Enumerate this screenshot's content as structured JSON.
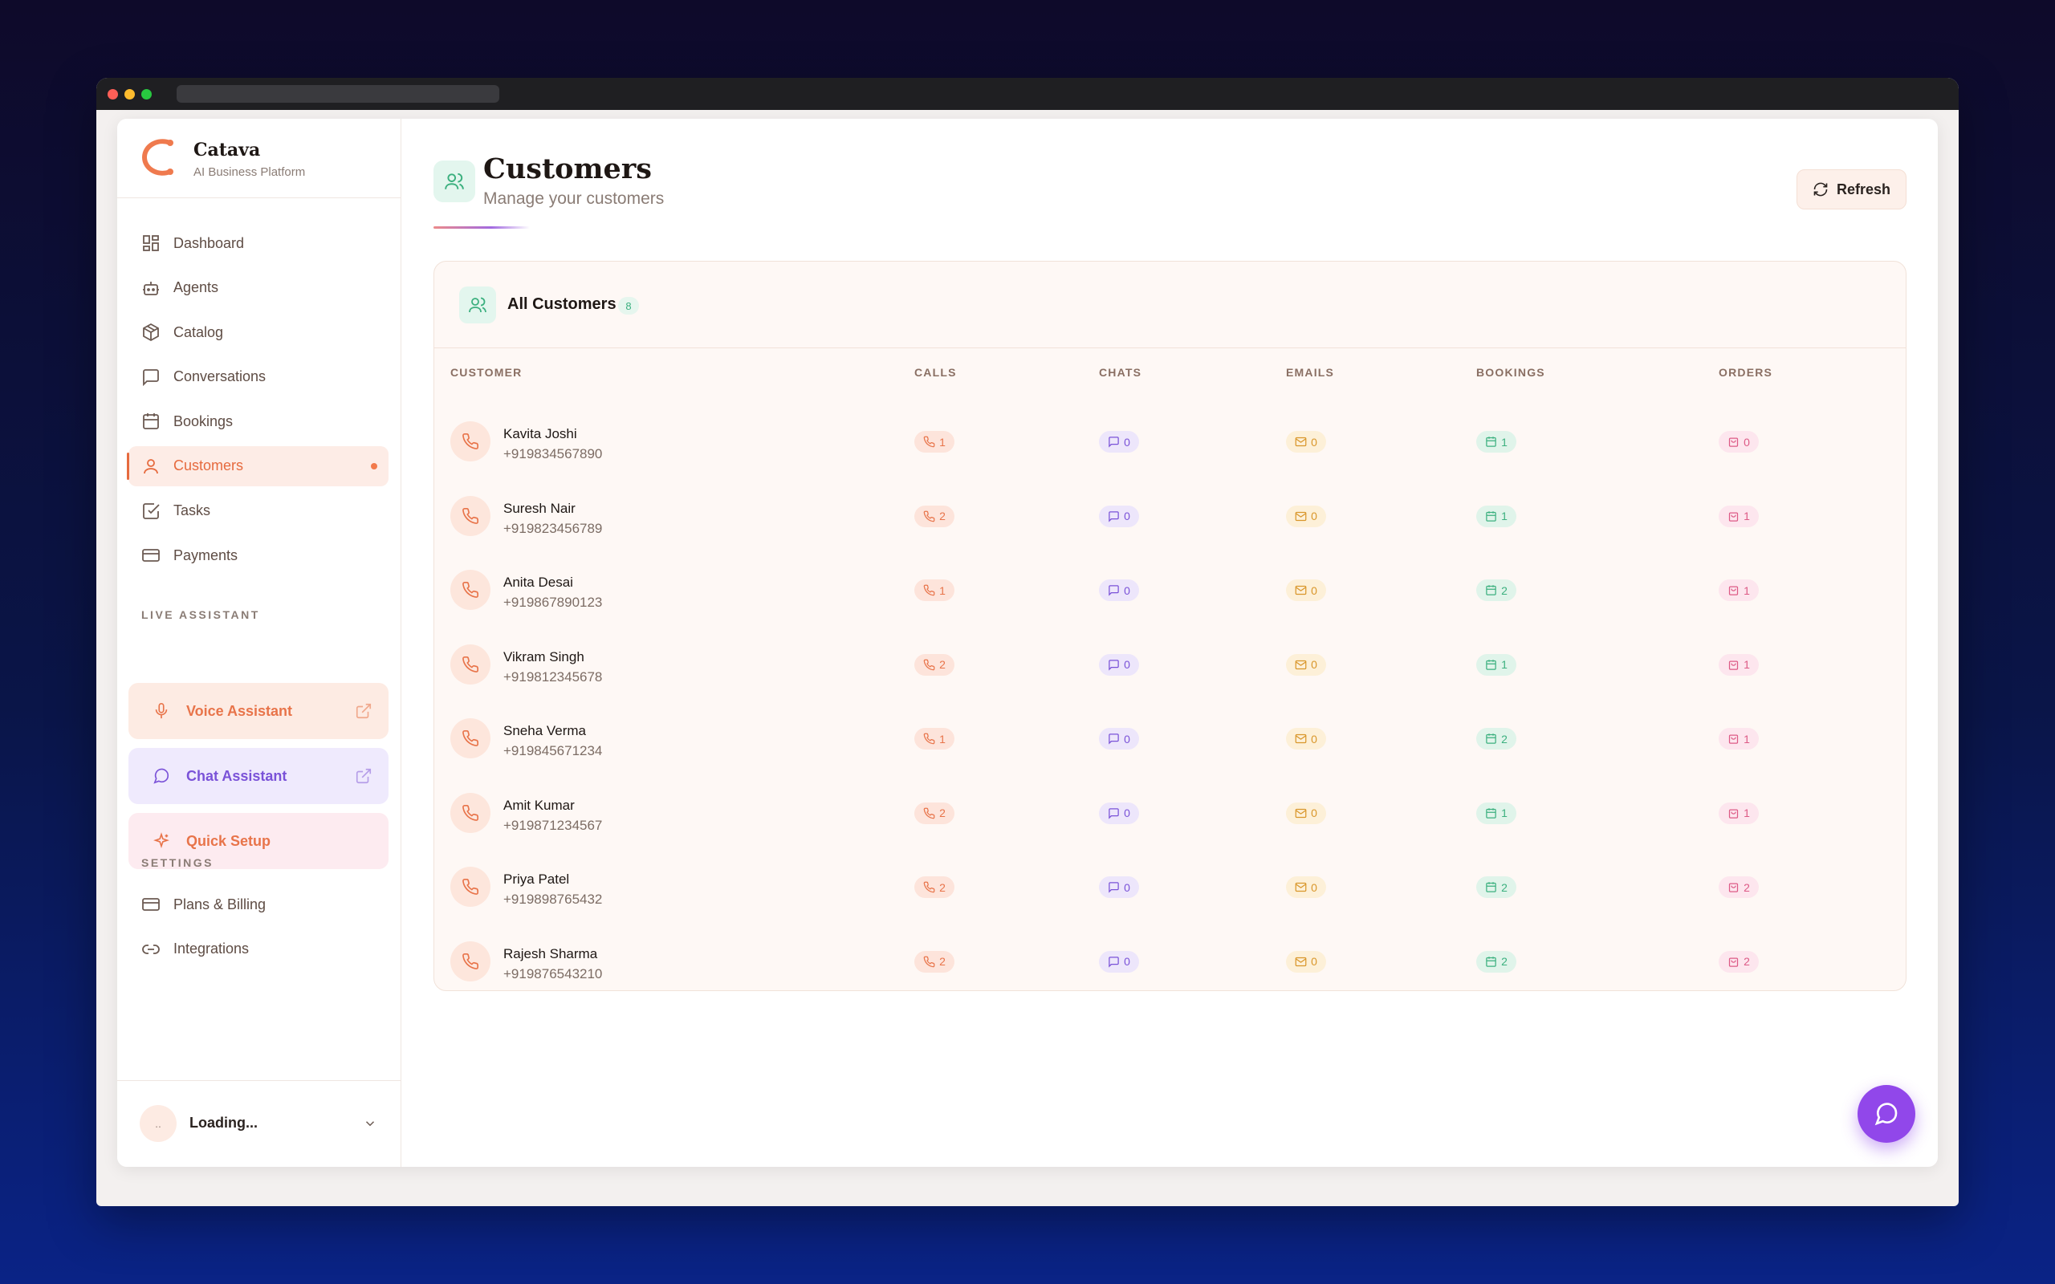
{
  "brand": {
    "name": "Catava",
    "subtitle": "AI Business Platform"
  },
  "sidebar": {
    "items": [
      {
        "label": "Dashboard",
        "icon": "dashboard-icon"
      },
      {
        "label": "Agents",
        "icon": "robot-icon"
      },
      {
        "label": "Catalog",
        "icon": "package-icon"
      },
      {
        "label": "Conversations",
        "icon": "message-square-icon"
      },
      {
        "label": "Bookings",
        "icon": "calendar-icon"
      },
      {
        "label": "Customers",
        "icon": "user-icon",
        "active": true
      },
      {
        "label": "Tasks",
        "icon": "check-square-icon"
      },
      {
        "label": "Payments",
        "icon": "credit-card-icon"
      }
    ],
    "live_assistant_label": "LIVE ASSISTANT",
    "assistants": {
      "voice": "Voice Assistant",
      "chat": "Chat Assistant",
      "setup": "Quick Setup"
    },
    "settings_label": "SETTINGS",
    "settings_items": [
      {
        "label": "Plans & Billing",
        "icon": "credit-card-icon"
      },
      {
        "label": "Integrations",
        "icon": "link-icon"
      }
    ],
    "user": {
      "avatar": "..",
      "name": "Loading..."
    }
  },
  "page": {
    "title": "Customers",
    "subtitle": "Manage your customers",
    "refresh_label": "Refresh"
  },
  "table": {
    "title": "All Customers",
    "count": "8",
    "columns": [
      "CUSTOMER",
      "CALLS",
      "CHATS",
      "EMAILS",
      "BOOKINGS",
      "ORDERS"
    ],
    "rows": [
      {
        "name": "Kavita Joshi",
        "phone": "+919834567890",
        "calls": "1",
        "chats": "0",
        "emails": "0",
        "bookings": "1",
        "orders": "0"
      },
      {
        "name": "Suresh Nair",
        "phone": "+919823456789",
        "calls": "2",
        "chats": "0",
        "emails": "0",
        "bookings": "1",
        "orders": "1"
      },
      {
        "name": "Anita Desai",
        "phone": "+919867890123",
        "calls": "1",
        "chats": "0",
        "emails": "0",
        "bookings": "2",
        "orders": "1"
      },
      {
        "name": "Vikram Singh",
        "phone": "+919812345678",
        "calls": "2",
        "chats": "0",
        "emails": "0",
        "bookings": "1",
        "orders": "1"
      },
      {
        "name": "Sneha Verma",
        "phone": "+919845671234",
        "calls": "1",
        "chats": "0",
        "emails": "0",
        "bookings": "2",
        "orders": "1"
      },
      {
        "name": "Amit Kumar",
        "phone": "+919871234567",
        "calls": "2",
        "chats": "0",
        "emails": "0",
        "bookings": "1",
        "orders": "1"
      },
      {
        "name": "Priya Patel",
        "phone": "+919898765432",
        "calls": "2",
        "chats": "0",
        "emails": "0",
        "bookings": "2",
        "orders": "2"
      },
      {
        "name": "Rajesh Sharma",
        "phone": "+919876543210",
        "calls": "2",
        "chats": "0",
        "emails": "0",
        "bookings": "2",
        "orders": "2"
      }
    ]
  },
  "colors": {
    "accent": "#e66a3e",
    "chat_purple": "#7a52d8",
    "fab": "#9147ea"
  }
}
